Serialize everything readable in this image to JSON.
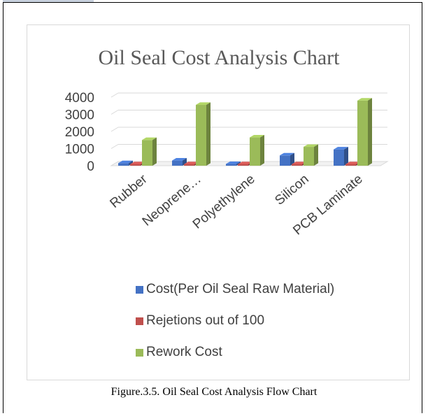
{
  "chart_data": {
    "type": "bar",
    "title": "Oil Seal Cost Analysis Chart",
    "categories": [
      "Rubber",
      "Neoprene…",
      "Polyethylene",
      "Silicon",
      "PCB Laminate"
    ],
    "series": [
      {
        "name": "Cost(Per Oil Seal Raw Material)",
        "color": "#4472c4",
        "values": [
          150,
          300,
          100,
          600,
          950
        ]
      },
      {
        "name": "Rejetions out of 100",
        "color": "#c0504d",
        "values": [
          10,
          15,
          8,
          12,
          10
        ]
      },
      {
        "name": "Rework Cost",
        "color": "#9bbb59",
        "values": [
          1500,
          3550,
          1650,
          1100,
          3800
        ]
      }
    ],
    "ylim": [
      0,
      4000
    ],
    "yticks": [
      "4000",
      "3000",
      "2000",
      "1000",
      "0"
    ],
    "grid": true,
    "legend_position": "bottom",
    "style": "3d-clustered-column"
  },
  "caption": "Figure.3.5. Oil Seal Cost Analysis Flow Chart"
}
